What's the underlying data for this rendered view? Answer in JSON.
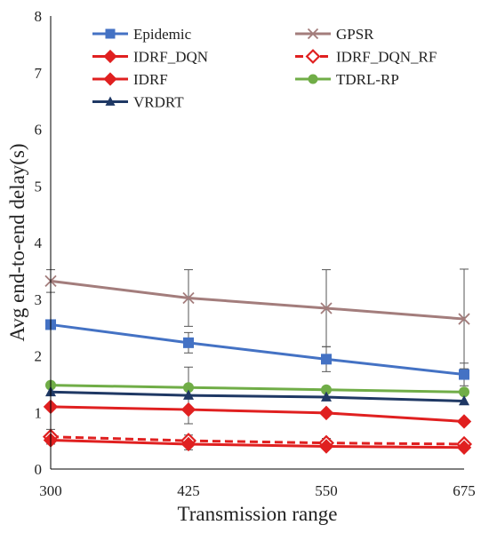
{
  "chart_data": {
    "type": "line",
    "title": "",
    "xlabel": "Transmission range",
    "ylabel": "Avg end-to-end delay(s)",
    "x": [
      300,
      425,
      550,
      675
    ],
    "x_ticks": [
      "300",
      "425",
      "550",
      "675"
    ],
    "ylim": [
      0,
      8
    ],
    "y_ticks": [
      "0",
      "1",
      "2",
      "3",
      "4",
      "5",
      "6",
      "7",
      "8"
    ],
    "grid": false,
    "legend_position": "top",
    "series": [
      {
        "name": "Epidemic",
        "values": [
          2.55,
          2.23,
          1.94,
          1.67
        ],
        "color": "#4472C4",
        "marker": "square",
        "dash": false,
        "err": [
          0,
          0.18,
          0.22,
          0.2
        ]
      },
      {
        "name": "GPSR",
        "values": [
          3.32,
          3.02,
          2.84,
          2.65
        ],
        "color": "#A37D7C",
        "marker": "x",
        "dash": false,
        "err": [
          0.2,
          0.5,
          0.68,
          0.88
        ]
      },
      {
        "name": "IDRF_DQN",
        "values": [
          1.1,
          1.05,
          0.99,
          0.84
        ],
        "color": "#E02020",
        "marker": "diamond",
        "dash": false,
        "err": [
          0,
          0,
          0,
          0
        ]
      },
      {
        "name": "IDRF_DQN_RF",
        "values": [
          0.57,
          0.5,
          0.46,
          0.44
        ],
        "color": "#E02020",
        "marker": "diamond-open",
        "dash": true,
        "err": [
          0.13,
          0.1,
          0.08,
          0.06
        ]
      },
      {
        "name": "IDRF",
        "values": [
          0.51,
          0.44,
          0.4,
          0.38
        ],
        "color": "#E02020",
        "marker": "diamond",
        "dash": false,
        "err": [
          0,
          0.1,
          0,
          0
        ]
      },
      {
        "name": "TDRL-RP",
        "values": [
          1.48,
          1.44,
          1.4,
          1.36
        ],
        "color": "#70AD47",
        "marker": "circle",
        "dash": false,
        "err": [
          0,
          0,
          0,
          0
        ]
      },
      {
        "name": "VRDRT",
        "values": [
          1.36,
          1.3,
          1.27,
          1.2
        ],
        "color": "#1F3864",
        "marker": "triangle",
        "dash": false,
        "err": [
          0,
          0.5,
          0,
          0
        ]
      }
    ]
  }
}
